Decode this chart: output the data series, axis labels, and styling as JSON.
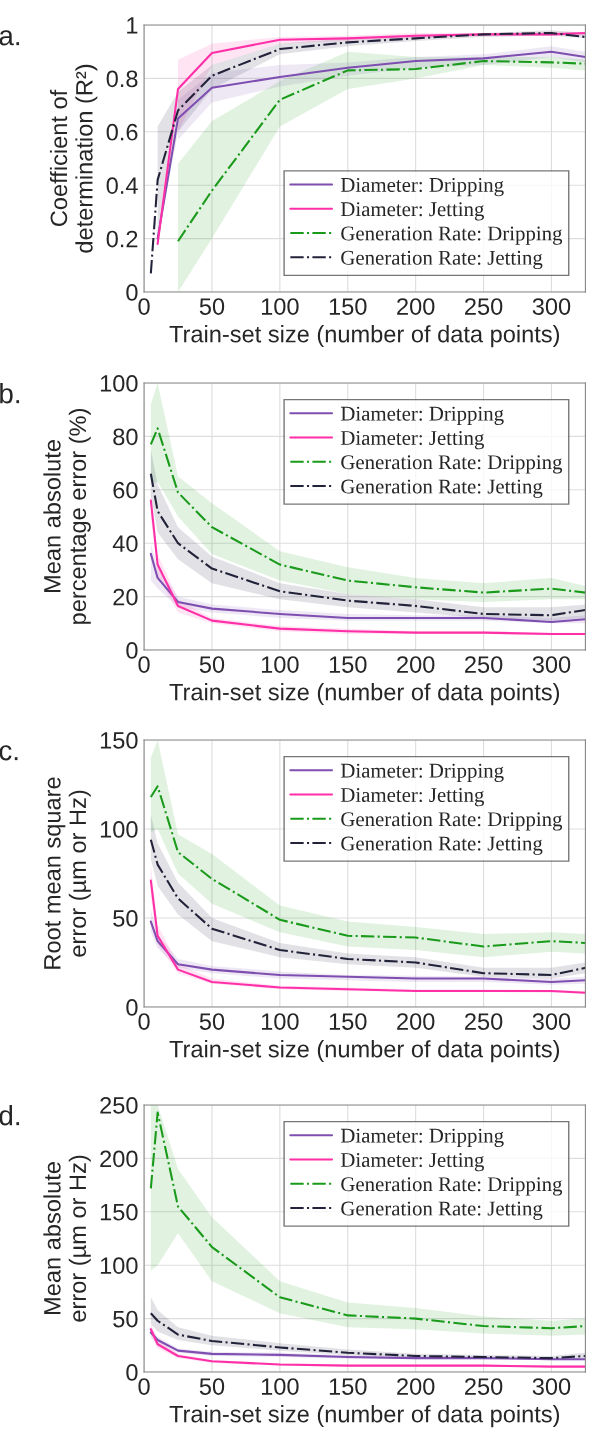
{
  "chart_data": [
    {
      "type": "line",
      "title": "a.",
      "xlabel": "Train-set size (number of data points)",
      "ylabel": "Coefficient of\ndetermination (R²)",
      "x": [
        5,
        10,
        25,
        50,
        100,
        150,
        200,
        250,
        300,
        325
      ],
      "xlim": [
        0,
        325
      ],
      "xticks": [
        0,
        50,
        100,
        150,
        200,
        250,
        300
      ],
      "ylim": [
        0,
        1
      ],
      "yticks": [
        0,
        0.2,
        0.4,
        0.6,
        0.8,
        1
      ],
      "grid": true,
      "legend": "bottom right",
      "series": [
        {
          "name": "Diameter: Dripping",
          "color": "#7e4fb0",
          "line_style": "solid",
          "values": [
            null,
            0.2,
            0.65,
            0.765,
            0.805,
            0.84,
            0.865,
            0.875,
            0.9,
            0.88
          ],
          "lower": [
            null,
            null,
            0.57,
            0.71,
            0.77,
            0.81,
            0.84,
            0.85,
            0.88,
            0.86
          ],
          "upper": [
            null,
            null,
            0.72,
            0.82,
            0.85,
            0.86,
            0.88,
            0.89,
            0.92,
            0.9
          ]
        },
        {
          "name": "Diameter: Jetting",
          "color": "#ff2fa8",
          "line_style": "solid",
          "values": [
            null,
            0.18,
            0.76,
            0.895,
            0.945,
            0.95,
            0.96,
            0.965,
            0.965,
            0.97
          ],
          "lower": [
            null,
            null,
            0.6,
            0.85,
            0.93,
            0.94,
            0.95,
            0.96,
            0.96,
            0.96
          ],
          "upper": [
            null,
            null,
            0.87,
            0.93,
            0.955,
            0.96,
            0.97,
            0.97,
            0.975,
            0.975
          ]
        },
        {
          "name": "Generation Rate: Dripping",
          "color": "#1a9a1a",
          "line_style": "dashdot",
          "values": [
            null,
            null,
            0.19,
            0.38,
            0.72,
            0.83,
            0.835,
            0.865,
            0.86,
            0.855
          ],
          "lower": [
            null,
            null,
            0.0,
            0.2,
            0.62,
            0.76,
            0.8,
            0.85,
            0.84,
            0.83
          ],
          "upper": [
            null,
            null,
            0.48,
            0.64,
            0.79,
            0.9,
            0.88,
            0.88,
            0.88,
            0.87
          ]
        },
        {
          "name": "Generation Rate: Jetting",
          "color": "#22223a",
          "line_style": "dashdot",
          "values": [
            0.07,
            0.42,
            0.68,
            0.81,
            0.91,
            0.935,
            0.95,
            0.965,
            0.97,
            0.955
          ],
          "lower": [
            null,
            0.2,
            0.6,
            0.76,
            0.89,
            0.92,
            0.94,
            0.955,
            0.96,
            0.95
          ],
          "upper": [
            null,
            0.62,
            0.75,
            0.85,
            0.93,
            0.95,
            0.96,
            0.97,
            0.98,
            0.97
          ]
        }
      ]
    },
    {
      "type": "line",
      "title": "b.",
      "xlabel": "Train-set size (number of data points)",
      "ylabel": "Mean absolute\npercentage error (%)",
      "x": [
        5,
        10,
        25,
        50,
        100,
        150,
        200,
        250,
        300,
        325
      ],
      "xlim": [
        0,
        325
      ],
      "xticks": [
        0,
        50,
        100,
        150,
        200,
        250,
        300
      ],
      "ylim": [
        0,
        100
      ],
      "yticks": [
        0,
        20,
        40,
        60,
        80,
        100
      ],
      "grid": true,
      "legend": "top right",
      "series": [
        {
          "name": "Diameter: Dripping",
          "color": "#7e4fb0",
          "line_style": "solid",
          "values": [
            36,
            27,
            18,
            15.5,
            13.5,
            12,
            12,
            12,
            10.5,
            11.5
          ],
          "lower": [
            26,
            23,
            16,
            14,
            12,
            11,
            11,
            11,
            10,
            10
          ],
          "upper": [
            40,
            31,
            20,
            17,
            15,
            13.5,
            13,
            13,
            12,
            13
          ]
        },
        {
          "name": "Diameter: Jetting",
          "color": "#ff2fa8",
          "line_style": "solid",
          "values": [
            56,
            32,
            16.5,
            11,
            8,
            7,
            6.5,
            6.5,
            6,
            6
          ],
          "lower": [
            50,
            28,
            14,
            10,
            7,
            6,
            6,
            6,
            5.5,
            5.5
          ],
          "upper": [
            60,
            36,
            19,
            12,
            9,
            8,
            7,
            7,
            6.5,
            6.5
          ]
        },
        {
          "name": "Generation Rate: Dripping",
          "color": "#1a9a1a",
          "line_style": "dashdot",
          "values": [
            77,
            83,
            59,
            46,
            32,
            26,
            23.5,
            21.5,
            23,
            21.5
          ],
          "lower": [
            62,
            63,
            50,
            36,
            26,
            21,
            19,
            18,
            19,
            19
          ],
          "upper": [
            92,
            100,
            65,
            55,
            37,
            31,
            27,
            25,
            27,
            24
          ]
        },
        {
          "name": "Generation Rate: Jetting",
          "color": "#22223a",
          "line_style": "dashdot",
          "values": [
            66,
            52,
            40,
            30.5,
            22,
            18.5,
            16.5,
            13.5,
            13,
            15
          ],
          "lower": [
            58,
            44,
            34,
            25,
            19,
            16,
            14,
            12,
            11,
            12
          ],
          "upper": [
            75,
            62,
            46,
            35,
            25,
            21,
            19,
            16,
            16,
            17
          ]
        }
      ]
    },
    {
      "type": "line",
      "title": "c.",
      "xlabel": "Train-set size (number of data points)",
      "ylabel": "Root mean square\nerror (µm or Hz)",
      "x": [
        5,
        10,
        25,
        50,
        100,
        150,
        200,
        250,
        300,
        325
      ],
      "xlim": [
        0,
        325
      ],
      "xticks": [
        0,
        50,
        100,
        150,
        200,
        250,
        300
      ],
      "ylim": [
        0,
        150
      ],
      "yticks": [
        0,
        50,
        100,
        150
      ],
      "grid": true,
      "legend": "top right",
      "series": [
        {
          "name": "Diameter: Dripping",
          "color": "#7e4fb0",
          "line_style": "solid",
          "values": [
            48,
            37,
            24,
            21,
            18,
            17,
            16,
            16,
            14,
            15
          ],
          "lower": [
            42,
            33,
            22,
            19,
            16,
            15,
            14,
            14,
            12.5,
            13
          ],
          "upper": [
            55,
            41,
            27,
            23,
            20,
            18,
            17.5,
            17,
            16,
            17
          ]
        },
        {
          "name": "Diameter: Jetting",
          "color": "#ff2fa8",
          "line_style": "solid",
          "values": [
            71,
            40,
            21,
            14,
            11,
            10,
            9,
            9,
            9,
            8
          ],
          "lower": [
            62,
            35,
            19,
            13,
            10,
            9,
            8.5,
            8.5,
            8,
            7.5
          ],
          "upper": [
            80,
            46,
            24,
            16,
            12,
            11,
            10,
            10,
            9.5,
            9
          ]
        },
        {
          "name": "Generation Rate: Dripping",
          "color": "#1a9a1a",
          "line_style": "dashdot",
          "values": [
            118,
            124,
            87,
            72,
            49,
            40,
            39,
            34,
            37,
            36
          ],
          "lower": [
            98,
            100,
            75,
            58,
            42,
            34,
            32,
            28,
            31,
            30
          ],
          "upper": [
            140,
            150,
            97,
            86,
            57,
            48,
            45,
            41,
            42,
            41
          ]
        },
        {
          "name": "Generation Rate: Jetting",
          "color": "#22223a",
          "line_style": "dashdot",
          "values": [
            94,
            80,
            61,
            44,
            32,
            27,
            25,
            19,
            18,
            22
          ],
          "lower": [
            83,
            68,
            52,
            37,
            28,
            24,
            22,
            17,
            16,
            19
          ],
          "upper": [
            108,
            92,
            70,
            50,
            36,
            30,
            28,
            22,
            22,
            25
          ]
        }
      ]
    },
    {
      "type": "line",
      "title": "d.",
      "xlabel": "Train-set size (number of data points)",
      "ylabel": "Mean absolute\nerror (µm or Hz)",
      "x": [
        5,
        10,
        25,
        50,
        100,
        150,
        200,
        250,
        300,
        325
      ],
      "xlim": [
        0,
        325
      ],
      "xticks": [
        0,
        50,
        100,
        150,
        200,
        250,
        300
      ],
      "ylim": [
        0,
        250
      ],
      "yticks": [
        0,
        50,
        100,
        150,
        200,
        250
      ],
      "grid": true,
      "legend": "top right",
      "series": [
        {
          "name": "Diameter: Dripping",
          "color": "#7e4fb0",
          "line_style": "solid",
          "values": [
            37,
            30,
            20,
            17,
            16,
            14,
            13,
            13,
            12,
            12
          ],
          "lower": [
            32,
            26,
            18,
            15,
            14,
            12.5,
            12,
            12,
            11,
            11
          ],
          "upper": [
            42,
            33,
            22,
            19,
            18,
            16,
            15,
            14.5,
            13,
            13
          ]
        },
        {
          "name": "Diameter: Jetting",
          "color": "#ff2fa8",
          "line_style": "solid",
          "values": [
            40,
            26,
            15,
            10,
            7,
            6,
            6,
            6,
            5,
            5
          ],
          "lower": [
            35,
            22,
            13,
            8.5,
            6,
            5,
            5,
            5,
            4.5,
            4.5
          ],
          "upper": [
            45,
            30,
            17,
            11,
            8,
            7,
            7,
            7,
            6,
            6
          ]
        },
        {
          "name": "Generation Rate: Dripping",
          "color": "#1a9a1a",
          "line_style": "dashdot",
          "values": [
            172,
            243,
            155,
            117,
            70,
            53,
            50,
            43,
            41,
            43
          ],
          "lower": [
            95,
            100,
            130,
            85,
            55,
            42,
            40,
            36,
            34,
            35
          ],
          "upper": [
            250,
            250,
            190,
            145,
            85,
            65,
            60,
            52,
            48,
            50
          ]
        },
        {
          "name": "Generation Rate: Jetting",
          "color": "#22223a",
          "line_style": "dashdot",
          "values": [
            55,
            48,
            35,
            29,
            23,
            18,
            15,
            14,
            13,
            15
          ],
          "lower": [
            45,
            38,
            30,
            25,
            20,
            16,
            13.5,
            12.5,
            11.5,
            13
          ],
          "upper": [
            70,
            58,
            42,
            34,
            27,
            21,
            17,
            16,
            15,
            18
          ]
        }
      ]
    }
  ]
}
